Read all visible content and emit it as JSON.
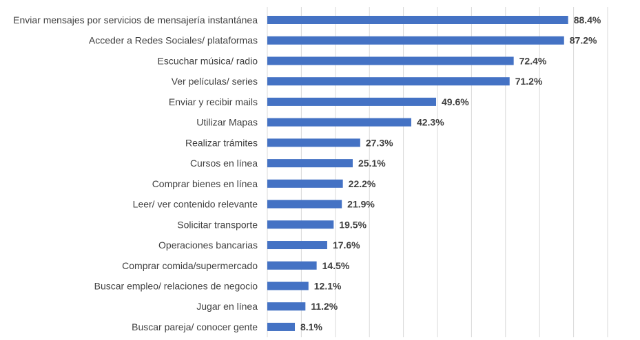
{
  "chart_data": {
    "type": "bar",
    "orientation": "horizontal",
    "title": "",
    "xlabel": "",
    "ylabel": "",
    "xlim": [
      0,
      100
    ],
    "grid": true,
    "legend": "none",
    "bar_color": "#4472c4",
    "value_suffix": "%",
    "categories": [
      "Enviar mensajes por servicios de mensajería instantánea",
      "Acceder a Redes Sociales/ plataformas",
      "Escuchar música/ radio",
      "Ver películas/ series",
      "Enviar y recibir mails",
      "Utilizar Mapas",
      "Realizar trámites",
      "Cursos en línea",
      "Comprar bienes en línea",
      "Leer/ ver contenido relevante",
      "Solicitar transporte",
      "Operaciones bancarias",
      "Comprar comida/supermercado",
      "Buscar empleo/ relaciones de negocio",
      "Jugar en línea",
      "Buscar pareja/ conocer gente"
    ],
    "values": [
      88.4,
      87.2,
      72.4,
      71.2,
      49.6,
      42.3,
      27.3,
      25.1,
      22.2,
      21.9,
      19.5,
      17.6,
      14.5,
      12.1,
      11.2,
      8.1
    ],
    "value_labels": [
      "88.4%",
      "87.2%",
      "72.4%",
      "71.2%",
      "49.6%",
      "42.3%",
      "27.3%",
      "25.1%",
      "22.2%",
      "21.9%",
      "19.5%",
      "17.6%",
      "14.5%",
      "12.1%",
      "11.2%",
      "8.1%"
    ]
  }
}
